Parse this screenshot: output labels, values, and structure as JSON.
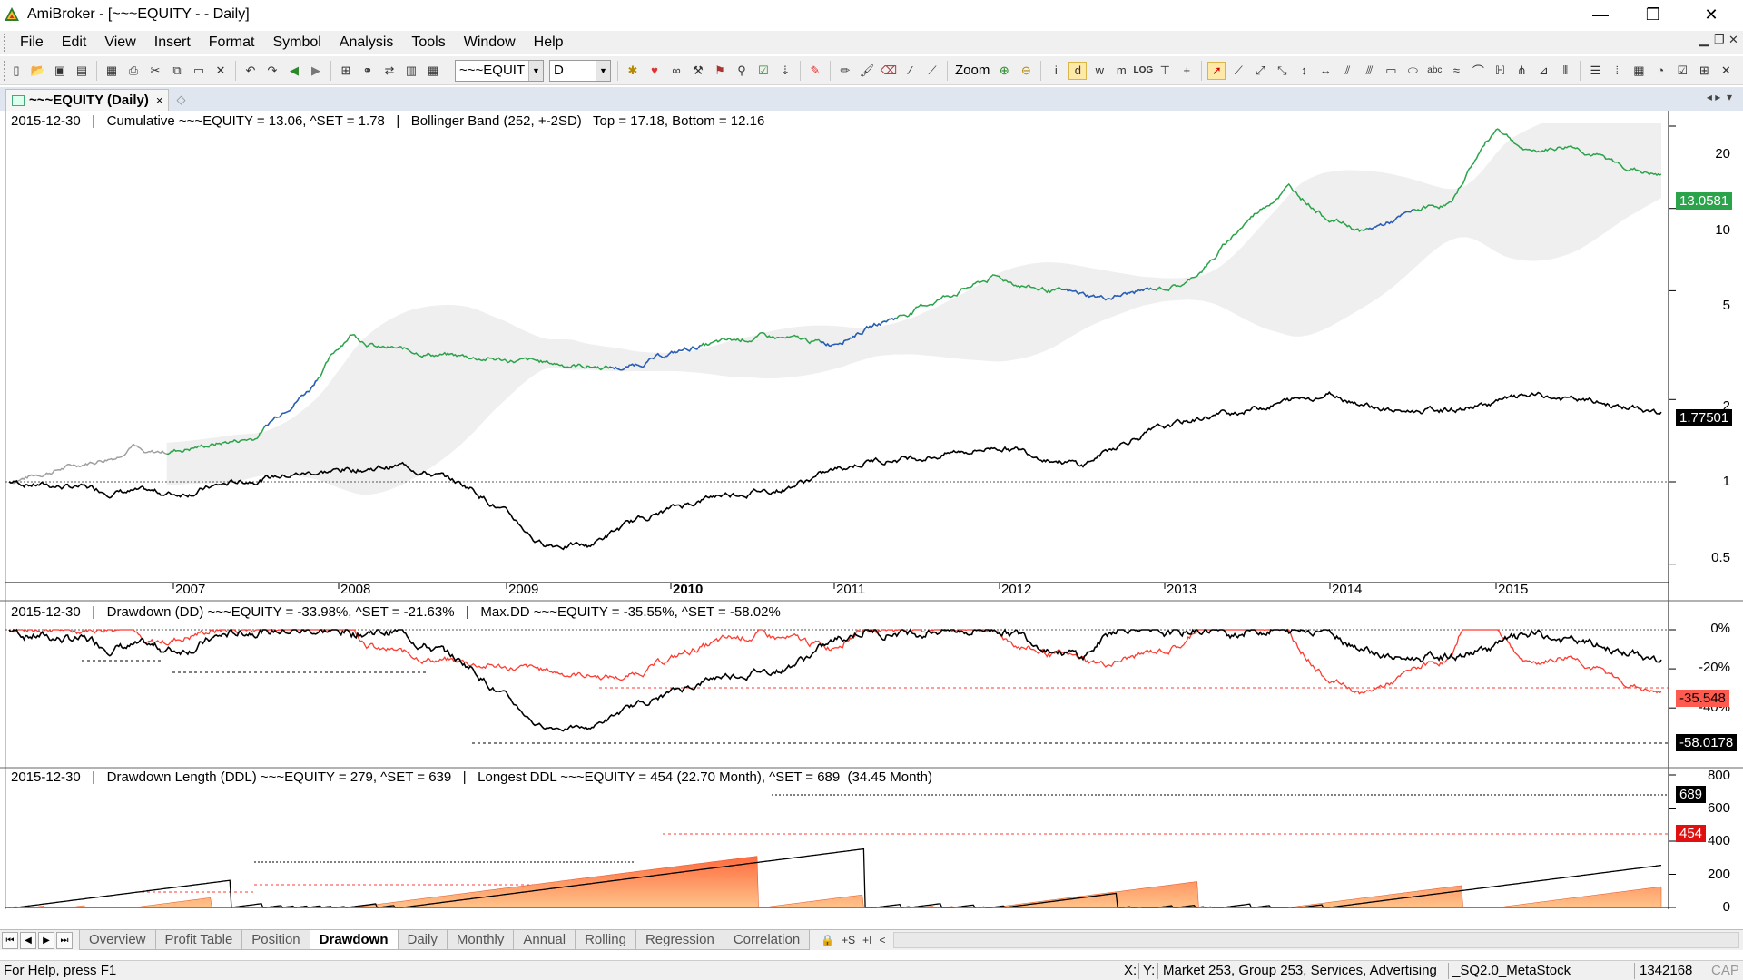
{
  "window": {
    "title": "AmiBroker - [~~~EQUITY -  - Daily]",
    "minimize": "—",
    "restore": "❐",
    "close": "✕"
  },
  "menu": [
    "File",
    "Edit",
    "View",
    "Insert",
    "Format",
    "Symbol",
    "Analysis",
    "Tools",
    "Window",
    "Help"
  ],
  "toolbar": {
    "symbol_value": "~~~EQUIT",
    "interval_value": "D",
    "zoom_label": "Zoom"
  },
  "document_tab": {
    "label": "~~~EQUITY (Daily)",
    "close": "×"
  },
  "panes": {
    "price": {
      "header": "2015-12-30   |   Cumulative ~~~EQUITY = 13.06, ^SET = 1.78   |   Bollinger Band (252, +-2SD)   Top = 17.18, Bottom = 12.16",
      "axis": [
        "20",
        "10",
        "5",
        "2",
        "1",
        "0.5"
      ],
      "equity_label": "13.0581",
      "set_label": "1.77501"
    },
    "drawdown": {
      "header": "2015-12-30   |   Drawdown (DD) ~~~EQUITY = -33.98%, ^SET = -21.63%   |   Max.DD ~~~EQUITY = -35.55%, ^SET = -58.02%",
      "axis": [
        "0%",
        "-20%",
        "-40%"
      ],
      "equity_label": "-35.548",
      "set_label": "-58.0178"
    },
    "ddl": {
      "header": "2015-12-30   |   Drawdown Length (DDL) ~~~EQUITY = 279, ^SET = 639   |   Longest DDL ~~~EQUITY = 454 (22.70 Month), ^SET = 689  (34.45 Month)",
      "axis": [
        "800",
        "600",
        "400",
        "200",
        "0"
      ],
      "set_label": "689",
      "equity_label": "454"
    }
  },
  "x_axis": [
    "2007",
    "2008",
    "2009",
    "2010",
    "2011",
    "2012",
    "2013",
    "2014",
    "2015"
  ],
  "sheet_tabs": [
    "Overview",
    "Profit Table",
    "Position",
    "Drawdown",
    "Daily",
    "Monthly",
    "Annual",
    "Rolling",
    "Regression",
    "Correlation"
  ],
  "sheet_active": "Drawdown",
  "sheet_tools": [
    "🔒",
    "+S",
    "+I",
    "<"
  ],
  "status": {
    "help": "For Help, press F1",
    "x": "X:",
    "y": "Y:",
    "market": "Market 253, Group 253, Services, Advertising",
    "db": "_SQ2.0_MetaStock",
    "bars": "1342168",
    "cap": "CAP"
  },
  "colors": {
    "equity_up": "#2e5bbf",
    "equity_down": "#2aa34a",
    "benchmark": "#000000",
    "dd_equity": "#ff3b30",
    "ddl_fill": "#ff8c4a",
    "band": "#efefef"
  },
  "chart_data": [
    {
      "type": "line",
      "title": "Cumulative ~~~EQUITY vs ^SET",
      "x": [
        "2006",
        "2007",
        "2008",
        "2008.5",
        "2009",
        "2010",
        "2011",
        "2012",
        "2013",
        "2014",
        "2014.8",
        "2015",
        "2015-12-30"
      ],
      "series": [
        {
          "name": "~~~EQUITY",
          "values": [
            1.0,
            1.3,
            3.6,
            2.8,
            2.7,
            3.3,
            5.6,
            5.2,
            12.0,
            8.8,
            20.0,
            16.5,
            13.06
          ]
        },
        {
          "name": "^SET",
          "values": [
            1.0,
            0.92,
            1.15,
            0.58,
            0.6,
            0.95,
            1.3,
            1.4,
            2.1,
            1.7,
            2.1,
            2.05,
            1.78
          ]
        }
      ],
      "ylim": [
        0.4,
        25
      ],
      "yscale": "log"
    },
    {
      "type": "line",
      "title": "Drawdown (DD)",
      "series": [
        {
          "name": "~~~EQUITY",
          "max_dd": -35.55,
          "current": -33.98
        },
        {
          "name": "^SET",
          "max_dd": -58.02,
          "current": -21.63
        }
      ],
      "ylim": [
        -60,
        0
      ]
    },
    {
      "type": "area",
      "title": "Drawdown Length (DDL)",
      "series": [
        {
          "name": "~~~EQUITY",
          "current": 279,
          "longest": 454
        },
        {
          "name": "^SET",
          "current": 639,
          "longest": 689
        }
      ],
      "ylim": [
        0,
        800
      ]
    }
  ]
}
